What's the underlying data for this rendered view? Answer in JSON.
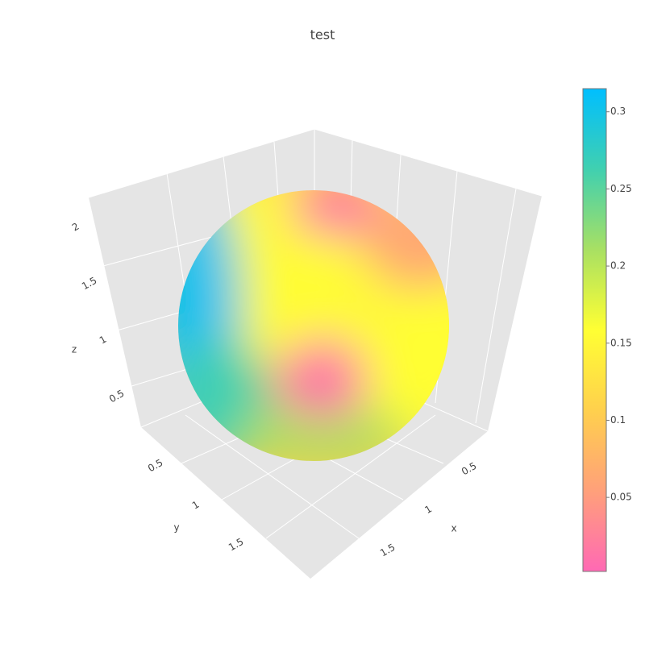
{
  "chart_data": {
    "type": "surface",
    "title": "test",
    "xaxis_title": "x",
    "yaxis_title": "y",
    "zaxis_title": "z",
    "xticks": [
      0.5,
      1,
      1.5
    ],
    "yticks": [
      0.5,
      1,
      1.5
    ],
    "zticks": [
      0.5,
      1,
      1.5,
      2
    ],
    "colorbar_lim": [
      0.002,
      0.315
    ],
    "colorbar_ticks": [
      0.05,
      0.1,
      0.15,
      0.2,
      0.25,
      0.3
    ],
    "colorscale": [
      "#ff69b4",
      "#ffa07a",
      "#ffd04d",
      "#ffff33",
      "#a8e063",
      "#40d0b0",
      "#00bfff"
    ]
  }
}
